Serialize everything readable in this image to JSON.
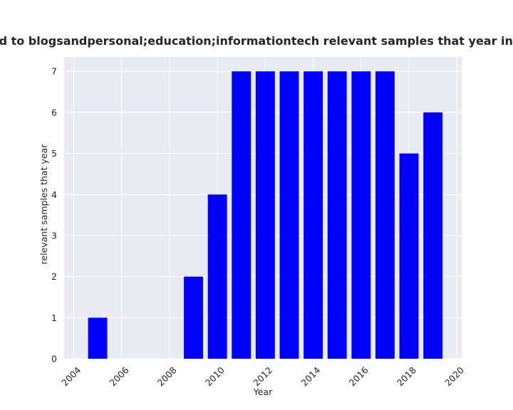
{
  "chart_data": {
    "type": "bar",
    "title": "are related to blogsandpersonal;education;informationtech relevant samples that year in private",
    "xlabel": "Year",
    "ylabel": "relevant samples that year",
    "x": [
      2005,
      2009,
      2010,
      2011,
      2012,
      2013,
      2014,
      2015,
      2016,
      2017,
      2018,
      2019
    ],
    "values": [
      1,
      2,
      4,
      7,
      7,
      7,
      7,
      7,
      7,
      7,
      5,
      6
    ],
    "xlim": [
      2003.6,
      2020.2
    ],
    "ylim": [
      0,
      7.35
    ],
    "xticks": [
      "2004",
      "2006",
      "2008",
      "2010",
      "2012",
      "2014",
      "2016",
      "2018",
      "2020"
    ],
    "yticks": [
      "0",
      "1",
      "2",
      "3",
      "4",
      "5",
      "6",
      "7"
    ],
    "bar_color": "#0000ff",
    "plot_background": "#eaeaf2",
    "grid_color": "#ffffff",
    "grid": true,
    "legend": false
  }
}
